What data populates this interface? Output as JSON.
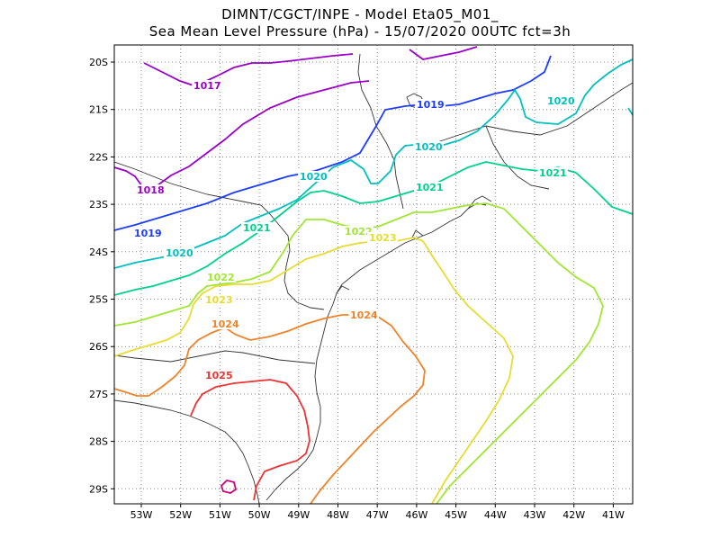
{
  "header": {
    "line1": "DIMNT/CGCT/INPE -  Model Eta05_M01_",
    "line2": "Sea Mean Level Pressure (hPa) - 15/07/2020 00UTC fct=3h"
  },
  "axes": {
    "lat_labels": [
      "20S",
      "21S",
      "22S",
      "23S",
      "24S",
      "25S",
      "26S",
      "27S",
      "28S",
      "29S"
    ],
    "lon_labels": [
      "53W",
      "52W",
      "51W",
      "50W",
      "49W",
      "48W",
      "47W",
      "46W",
      "45W",
      "44W",
      "43W",
      "42W",
      "41W"
    ]
  },
  "contours": [
    {
      "level": "1017",
      "color": "#9b00c8"
    },
    {
      "level": "1018",
      "color": "#9b00c8"
    },
    {
      "level": "1019",
      "color": "#1e3cff"
    },
    {
      "level": "1020",
      "color": "#00c0c0"
    },
    {
      "level": "1021",
      "color": "#00d28c"
    },
    {
      "level": "1022",
      "color": "#a0e632"
    },
    {
      "level": "1023",
      "color": "#e6dc32"
    },
    {
      "level": "1024",
      "color": "#f08228"
    },
    {
      "level": "1025",
      "color": "#f03232"
    },
    {
      "level": "1026",
      "color": "#d2007a"
    }
  ]
}
